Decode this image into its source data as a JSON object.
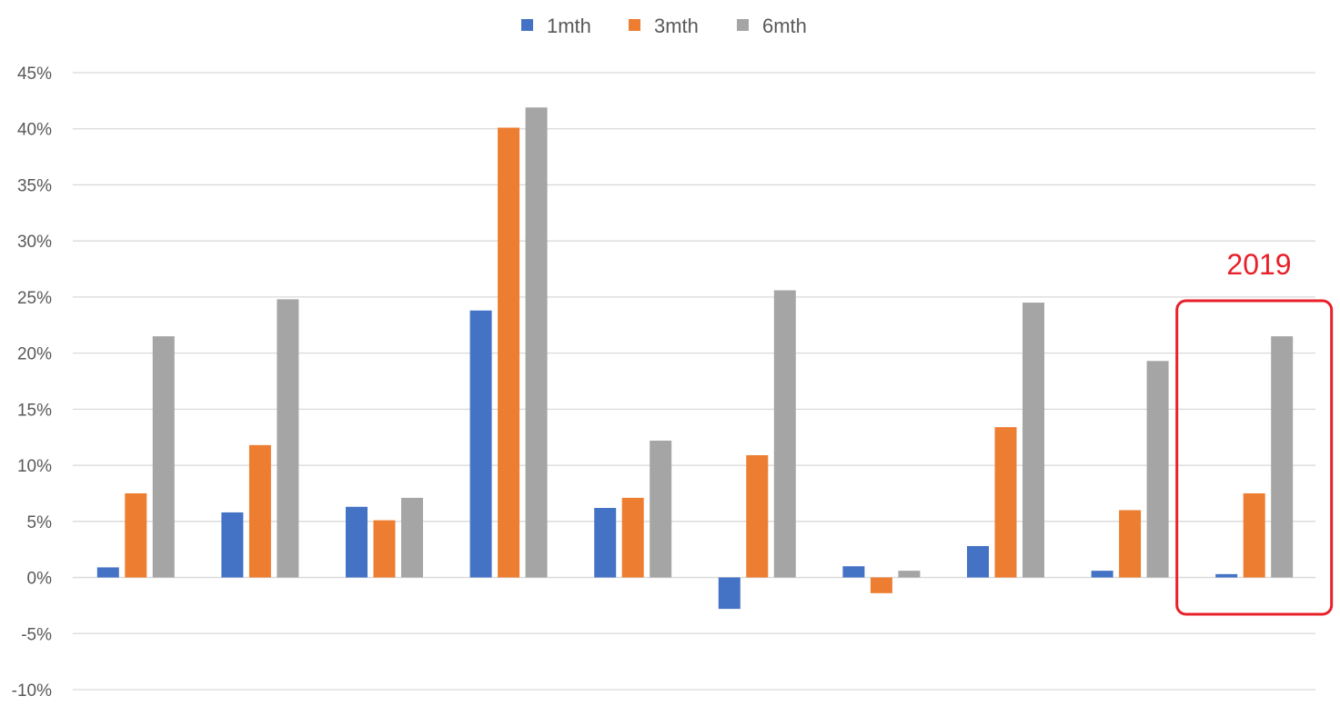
{
  "chart_data": {
    "type": "bar",
    "categories": [
      "",
      "",
      "",
      "",
      "",
      "",
      "",
      "",
      "",
      ""
    ],
    "series": [
      {
        "name": "1mth",
        "color": "#4472c4",
        "values": [
          0.9,
          5.8,
          6.3,
          23.8,
          6.2,
          -2.8,
          1.0,
          2.8,
          0.6,
          0.3
        ]
      },
      {
        "name": "3mth",
        "color": "#ed7d31",
        "values": [
          7.5,
          11.8,
          5.1,
          40.1,
          7.1,
          10.9,
          -1.4,
          13.4,
          6.0,
          7.5
        ]
      },
      {
        "name": "6mth",
        "color": "#a5a5a5",
        "values": [
          21.5,
          24.8,
          7.1,
          41.9,
          12.2,
          25.6,
          0.6,
          24.5,
          19.3,
          21.5
        ]
      }
    ],
    "ylim": [
      -10,
      45
    ],
    "ytick_step": 5,
    "ytick_labels": [
      "-10%",
      "-5%",
      "0%",
      "5%",
      "10%",
      "15%",
      "20%",
      "25%",
      "30%",
      "35%",
      "40%",
      "45%"
    ],
    "grid": true,
    "legend_position": "top-center",
    "title": "",
    "xlabel": "",
    "ylabel": "",
    "annotation": {
      "text": "2019",
      "category_index": 9,
      "color": "#e8202a"
    }
  }
}
